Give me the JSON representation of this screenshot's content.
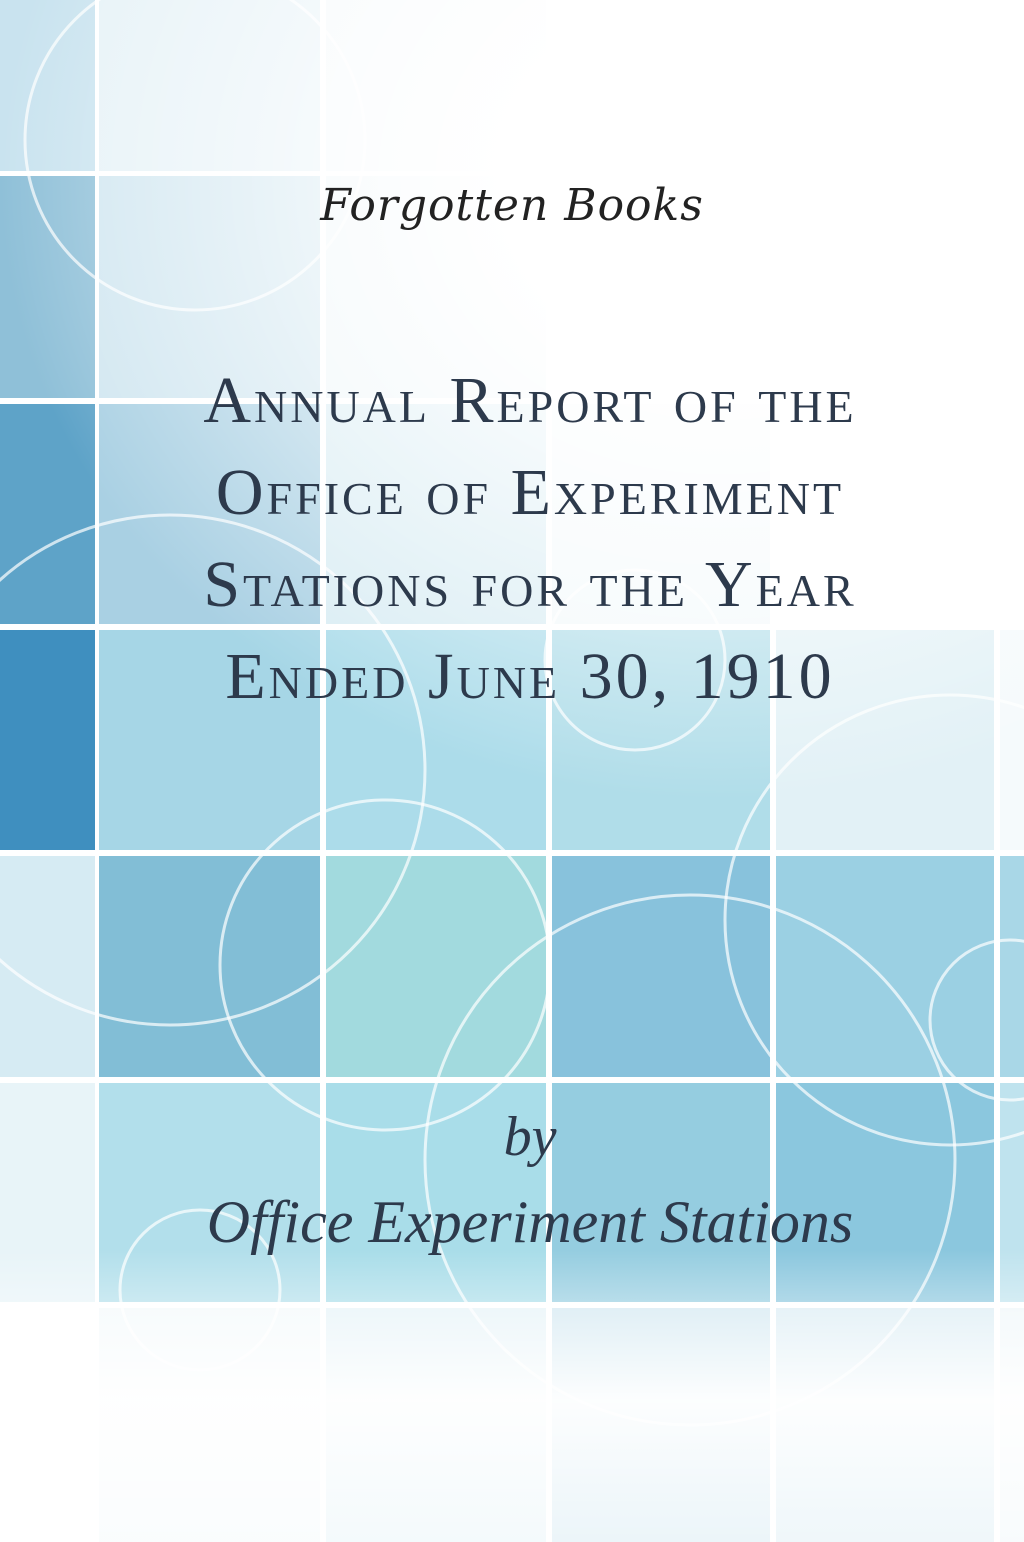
{
  "cover": {
    "publisher_logo": "Forgotten Books",
    "title_lines": [
      "Annual Report of the",
      "Office of Experiment",
      "Stations for the Year",
      "Ended June 30, 1910"
    ],
    "by": "by",
    "author": "Office Experiment Stations"
  },
  "colors": {
    "text": "#2d3a4c",
    "accent_blue": "#3f8fbf",
    "light_blue": "#a8d8e8"
  }
}
